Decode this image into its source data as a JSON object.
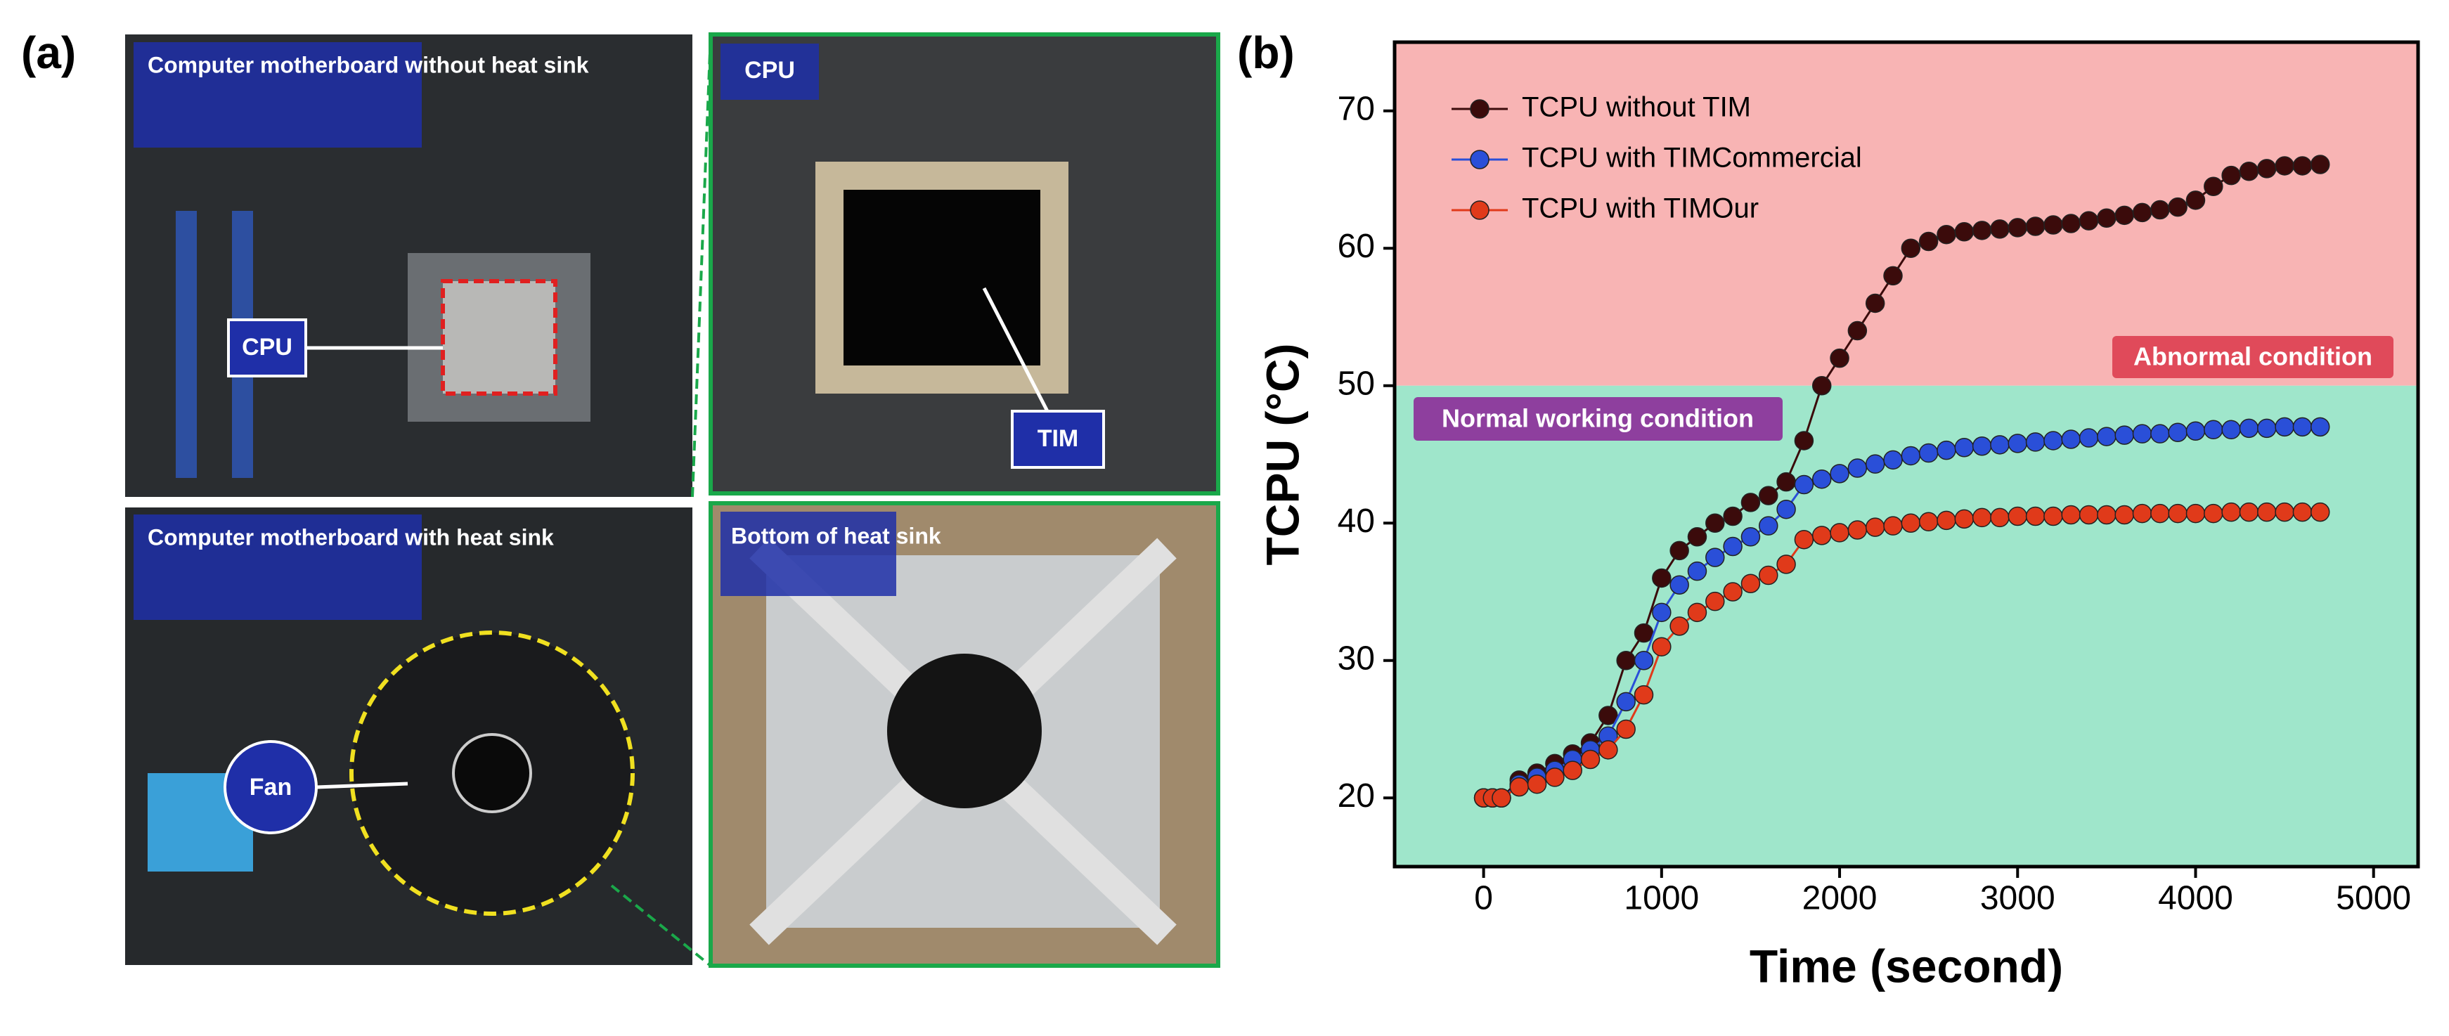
{
  "figure_labels": {
    "a": "(a)",
    "b": "(b)"
  },
  "photo_labels": {
    "top_left": "Computer motherboard without heat sink",
    "top_left_cpu": "CPU",
    "top_right": "CPU",
    "top_right_tim": "TIM",
    "bottom_left": "Computer motherboard with heat sink",
    "bottom_left_fan": "Fan",
    "bottom_right": "Bottom of heat sink"
  },
  "chart_data": {
    "type": "line",
    "x_label": "Time (second)",
    "y_label": "TCPU (°C)",
    "annotations": {
      "abnormal": "Abnormal condition",
      "normal": "Normal working condition"
    },
    "threshold": 50,
    "region_colors": {
      "above": "#f8b4b4",
      "below": "#9fe6cb"
    },
    "x": [
      0,
      50,
      100,
      200,
      300,
      400,
      500,
      600,
      700,
      800,
      900,
      1000,
      1100,
      1200,
      1300,
      1400,
      1500,
      1600,
      1700,
      1800,
      1900,
      2000,
      2100,
      2200,
      2300,
      2400,
      2500,
      2600,
      2700,
      2800,
      2900,
      3000,
      3100,
      3200,
      3300,
      3400,
      3500,
      3600,
      3700,
      3800,
      3900,
      4000,
      4100,
      4200,
      4300,
      4400,
      4500,
      4600,
      4700
    ],
    "series": [
      {
        "name": "TCPU without TIM",
        "color": "#3b0b0b",
        "values": [
          20,
          20,
          20,
          21.3,
          21.8,
          22.5,
          23.2,
          24,
          26,
          30,
          32,
          36,
          38,
          39,
          40,
          40.5,
          41.5,
          42,
          43,
          46,
          50,
          52,
          54,
          56,
          58,
          60,
          60.5,
          61,
          61.2,
          61.3,
          61.4,
          61.5,
          61.6,
          61.7,
          61.8,
          62,
          62.2,
          62.4,
          62.6,
          62.8,
          63,
          63.5,
          64.5,
          65.3,
          65.6,
          65.8,
          66,
          66,
          66.1
        ]
      },
      {
        "name": "TCPU with TIMCommercial",
        "color": "#2a4fd8",
        "values": [
          20,
          20,
          20,
          21,
          21.5,
          22,
          22.8,
          23.5,
          24.5,
          27,
          30,
          33.5,
          35.5,
          36.5,
          37.5,
          38.3,
          39,
          39.8,
          41,
          42.8,
          43.2,
          43.6,
          44,
          44.3,
          44.6,
          44.9,
          45.1,
          45.3,
          45.5,
          45.6,
          45.7,
          45.8,
          45.9,
          46,
          46.1,
          46.2,
          46.3,
          46.4,
          46.5,
          46.5,
          46.6,
          46.7,
          46.8,
          46.8,
          46.9,
          46.9,
          47,
          47,
          47
        ]
      },
      {
        "name": "TCPU with TIMOur",
        "color": "#e03a1a",
        "values": [
          20,
          20,
          20,
          20.8,
          21,
          21.5,
          22,
          22.8,
          23.5,
          25,
          27.5,
          31,
          32.5,
          33.5,
          34.3,
          35,
          35.6,
          36.2,
          37,
          38.8,
          39.1,
          39.3,
          39.5,
          39.7,
          39.8,
          40,
          40.1,
          40.2,
          40.3,
          40.4,
          40.4,
          40.5,
          40.5,
          40.5,
          40.6,
          40.6,
          40.6,
          40.6,
          40.7,
          40.7,
          40.7,
          40.7,
          40.7,
          40.8,
          40.8,
          40.8,
          40.8,
          40.8,
          40.8
        ]
      }
    ],
    "xlim": [
      -500,
      5250
    ],
    "ylim": [
      15,
      75
    ],
    "xticks": [
      0,
      1000,
      2000,
      3000,
      4000,
      5000
    ],
    "yticks": [
      20,
      30,
      40,
      50,
      60,
      70
    ],
    "legend": "upper left"
  }
}
